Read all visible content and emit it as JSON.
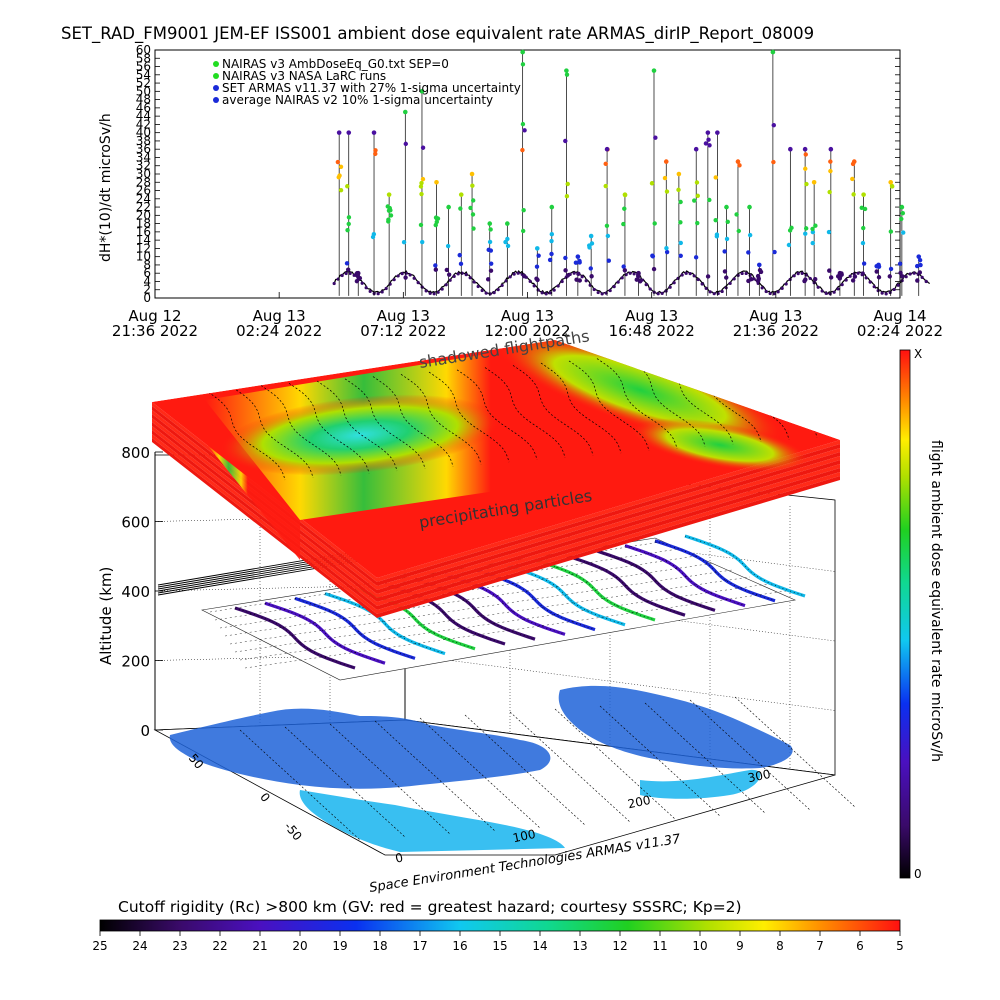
{
  "top_title": "SET_RAD_FM9001   JEM-EF ISS001 ambient dose equivalent rate ARMAS_dirIP_Report_08009",
  "chart_data": [
    {
      "type": "scatter",
      "ylabel": "dH*(10)/dt microSv/h",
      "xlabel": "",
      "ylim": [
        0,
        60
      ],
      "yticks": [
        "0",
        "2",
        "4",
        "6",
        "8",
        "10",
        "12",
        "14",
        "16",
        "18",
        "20",
        "22",
        "24",
        "26",
        "28",
        "30",
        "32",
        "34",
        "36",
        "38",
        "40",
        "42",
        "44",
        "46",
        "48",
        "50",
        "52",
        "54",
        "56",
        "58",
        "60"
      ],
      "xticks": [
        {
          "day": "Aug 12",
          "time": "21:36 2022"
        },
        {
          "day": "Aug 13",
          "time": "02:24 2022"
        },
        {
          "day": "Aug 13",
          "time": "07:12 2022"
        },
        {
          "day": "Aug 13",
          "time": "12:00 2022"
        },
        {
          "day": "Aug 13",
          "time": "16:48 2022"
        },
        {
          "day": "Aug 13",
          "time": "21:36 2022"
        },
        {
          "day": "Aug 14",
          "time": "02:24 2022"
        }
      ],
      "legend": [
        {
          "name": "NAIRAS v3 AmbDoseEq_G0.txt SEP=0",
          "color": "#22dd22"
        },
        {
          "name": "NAIRAS v3 NASA LaRC runs",
          "color": "#22dd22"
        },
        {
          "name": "SET ARMAS v11.37 with 27% 1-sigma uncertainty",
          "color": "#1a2ad8"
        },
        {
          "name": "average NAIRAS v2 10% 1-sigma uncertainty",
          "color": "#1a2ad8"
        }
      ],
      "legend_position": "top-left",
      "series": [
        {
          "x_hours_tick_index_range": [
            1.0,
            6.4
          ],
          "baseline": 3.5,
          "spike_levels": [
            6,
            8,
            10,
            12,
            15,
            18,
            20,
            22,
            25,
            28,
            30,
            33,
            36,
            40,
            45,
            50,
            55,
            60
          ]
        }
      ]
    },
    {
      "type": "heatmap",
      "zlabel": "Altitude (km)",
      "zticks": [
        "0",
        "200",
        "400",
        "600",
        "800"
      ],
      "lon_ticks": [
        "0",
        "100",
        "200",
        "300"
      ],
      "lat_ticks": [
        "-50",
        "0",
        "50"
      ],
      "annotations": [
        "shadowed flightpaths",
        "precipitating particles"
      ]
    }
  ],
  "right_colorbar": {
    "label": "flight ambient dose equivalent rate microSv/h",
    "top_label": "X",
    "bottom_label": "0"
  },
  "credit": "Space Environment Technologies ARMAS v11.37",
  "bottom_title": "Cutoff rigidity (Rc) >800 km (GV: red = greatest hazard; courtesy SSSRC; Kp=2)",
  "bottom_colorbar": {
    "ticks": [
      "25",
      "24",
      "23",
      "22",
      "21",
      "20",
      "19",
      "18",
      "17",
      "16",
      "15",
      "14",
      "13",
      "12",
      "11",
      "10",
      "9",
      "8",
      "7",
      "6",
      "5"
    ]
  }
}
